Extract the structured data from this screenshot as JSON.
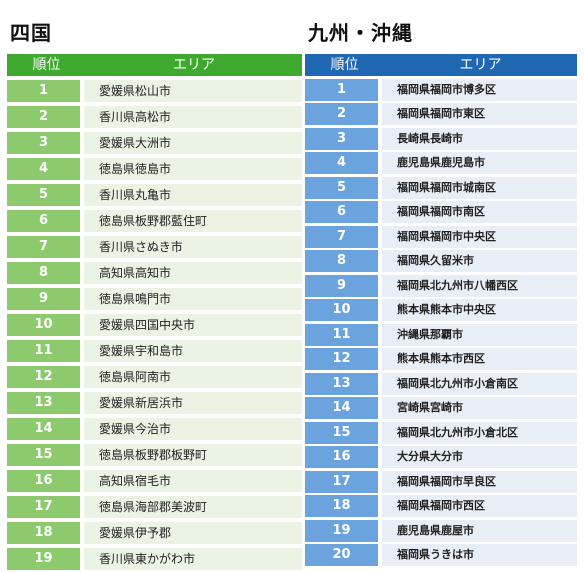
{
  "shikoku": {
    "title": "四国",
    "header": {
      "rank": "順位",
      "area": "エリア"
    },
    "rows": [
      {
        "rank": "1",
        "area": "愛媛県松山市"
      },
      {
        "rank": "2",
        "area": "香川県高松市"
      },
      {
        "rank": "3",
        "area": "愛媛県大洲市"
      },
      {
        "rank": "4",
        "area": "徳島県徳島市"
      },
      {
        "rank": "5",
        "area": "香川県丸亀市"
      },
      {
        "rank": "6",
        "area": "徳島県板野郡藍住町"
      },
      {
        "rank": "7",
        "area": "香川県さぬき市"
      },
      {
        "rank": "8",
        "area": "高知県高知市"
      },
      {
        "rank": "9",
        "area": "徳島県鳴門市"
      },
      {
        "rank": "10",
        "area": "愛媛県四国中央市"
      },
      {
        "rank": "11",
        "area": "愛媛県宇和島市"
      },
      {
        "rank": "12",
        "area": "徳島県阿南市"
      },
      {
        "rank": "13",
        "area": "愛媛県新居浜市"
      },
      {
        "rank": "14",
        "area": "愛媛県今治市"
      },
      {
        "rank": "15",
        "area": "徳島県板野郡板野町"
      },
      {
        "rank": "16",
        "area": "高知県宿毛市"
      },
      {
        "rank": "17",
        "area": "徳島県海部郡美波町"
      },
      {
        "rank": "18",
        "area": "愛媛県伊予郡"
      },
      {
        "rank": "19",
        "area": "香川県東かがわ市"
      }
    ]
  },
  "kyushu": {
    "title": "九州・沖縄",
    "header": {
      "rank": "順位",
      "area": "エリア"
    },
    "rows": [
      {
        "rank": "1",
        "area": "福岡県福岡市博多区"
      },
      {
        "rank": "2",
        "area": "福岡県福岡市東区"
      },
      {
        "rank": "3",
        "area": "長崎県長崎市"
      },
      {
        "rank": "4",
        "area": "鹿児島県鹿児島市"
      },
      {
        "rank": "5",
        "area": "福岡県福岡市城南区"
      },
      {
        "rank": "6",
        "area": "福岡県福岡市南区"
      },
      {
        "rank": "7",
        "area": "福岡県福岡市中央区"
      },
      {
        "rank": "8",
        "area": "福岡県久留米市"
      },
      {
        "rank": "9",
        "area": "福岡県北九州市八幡西区"
      },
      {
        "rank": "10",
        "area": "熊本県熊本市中央区"
      },
      {
        "rank": "11",
        "area": "沖縄県那覇市"
      },
      {
        "rank": "12",
        "area": "熊本県熊本市西区"
      },
      {
        "rank": "13",
        "area": "福岡県北九州市小倉南区"
      },
      {
        "rank": "14",
        "area": "宮崎県宮崎市"
      },
      {
        "rank": "15",
        "area": "福岡県北九州市小倉北区"
      },
      {
        "rank": "16",
        "area": "大分県大分市"
      },
      {
        "rank": "17",
        "area": "福岡県福岡市早良区"
      },
      {
        "rank": "18",
        "area": "福岡県福岡市西区"
      },
      {
        "rank": "19",
        "area": "鹿児島県鹿屋市"
      },
      {
        "rank": "20",
        "area": "福岡県うきは市"
      }
    ]
  }
}
